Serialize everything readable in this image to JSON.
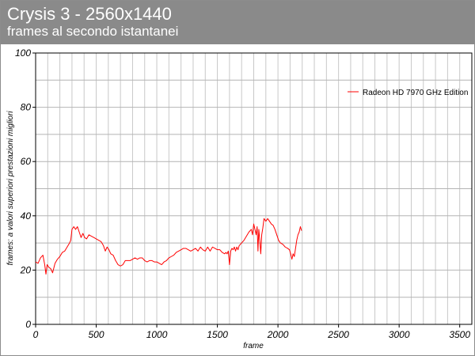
{
  "header": {
    "title": "Crysis 3 - 2560x1440",
    "subtitle": "frames al secondo istantanei"
  },
  "chart_data": {
    "type": "line",
    "xlabel": "frame",
    "ylabel": "frames: a valori superiori prestazioni migliori",
    "xlim": [
      0,
      3600
    ],
    "ylim": [
      0,
      100
    ],
    "x_ticks": [
      0,
      500,
      1000,
      1500,
      2000,
      2500,
      3000,
      3500
    ],
    "y_ticks": [
      0,
      20,
      40,
      60,
      80,
      100
    ],
    "x_tick_labels": [
      "0",
      "500",
      "1000",
      "1500",
      "2000",
      "2500",
      "3000",
      "3500"
    ],
    "y_tick_labels": [
      "0",
      "20",
      "40",
      "60",
      "80",
      "100"
    ],
    "x_grid_step": 100,
    "y_grid_step": 10,
    "grid": true,
    "legend_position": "top-right",
    "series": [
      {
        "name": "Radeon HD 7970 GHz Edition",
        "color": "#ff0000",
        "points": [
          [
            0,
            23
          ],
          [
            20,
            22.5
          ],
          [
            40,
            24.5
          ],
          [
            60,
            25.5
          ],
          [
            75,
            22
          ],
          [
            85,
            18.5
          ],
          [
            95,
            22
          ],
          [
            110,
            21
          ],
          [
            125,
            20.5
          ],
          [
            140,
            19
          ],
          [
            160,
            22.5
          ],
          [
            180,
            24
          ],
          [
            200,
            25
          ],
          [
            220,
            26.5
          ],
          [
            240,
            27
          ],
          [
            260,
            28.5
          ],
          [
            280,
            30
          ],
          [
            290,
            31
          ],
          [
            300,
            35
          ],
          [
            315,
            36
          ],
          [
            330,
            35
          ],
          [
            345,
            36
          ],
          [
            360,
            34
          ],
          [
            375,
            32
          ],
          [
            390,
            33.5
          ],
          [
            405,
            32
          ],
          [
            420,
            31.5
          ],
          [
            440,
            33
          ],
          [
            460,
            32.5
          ],
          [
            480,
            32
          ],
          [
            500,
            31.5
          ],
          [
            520,
            31
          ],
          [
            540,
            30.5
          ],
          [
            560,
            29
          ],
          [
            575,
            27
          ],
          [
            590,
            28.5
          ],
          [
            605,
            27.5
          ],
          [
            620,
            26
          ],
          [
            640,
            25.5
          ],
          [
            660,
            23.5
          ],
          [
            680,
            22
          ],
          [
            700,
            21.5
          ],
          [
            720,
            22
          ],
          [
            740,
            23.5
          ],
          [
            760,
            23.5
          ],
          [
            780,
            23.5
          ],
          [
            800,
            24
          ],
          [
            820,
            24.5
          ],
          [
            840,
            24
          ],
          [
            860,
            24.5
          ],
          [
            880,
            24.5
          ],
          [
            900,
            23.5
          ],
          [
            920,
            23
          ],
          [
            940,
            23.5
          ],
          [
            960,
            23.5
          ],
          [
            980,
            23
          ],
          [
            1000,
            23
          ],
          [
            1020,
            22.5
          ],
          [
            1040,
            22
          ],
          [
            1060,
            23
          ],
          [
            1080,
            23.5
          ],
          [
            1100,
            24.5
          ],
          [
            1120,
            25
          ],
          [
            1140,
            25.5
          ],
          [
            1160,
            26.5
          ],
          [
            1180,
            27
          ],
          [
            1200,
            27.5
          ],
          [
            1220,
            28
          ],
          [
            1240,
            28
          ],
          [
            1260,
            27.5
          ],
          [
            1280,
            27
          ],
          [
            1300,
            27.5
          ],
          [
            1320,
            28
          ],
          [
            1340,
            27
          ],
          [
            1360,
            28.5
          ],
          [
            1380,
            27.5
          ],
          [
            1400,
            27
          ],
          [
            1420,
            28.5
          ],
          [
            1440,
            27
          ],
          [
            1460,
            28.5
          ],
          [
            1480,
            28
          ],
          [
            1500,
            27.5
          ],
          [
            1520,
            27.5
          ],
          [
            1540,
            26.5
          ],
          [
            1560,
            26
          ],
          [
            1570,
            26.5
          ],
          [
            1580,
            26
          ],
          [
            1590,
            27
          ],
          [
            1600,
            22
          ],
          [
            1610,
            27
          ],
          [
            1620,
            28
          ],
          [
            1630,
            27.5
          ],
          [
            1640,
            28.5
          ],
          [
            1650,
            27
          ],
          [
            1660,
            28.5
          ],
          [
            1670,
            27.5
          ],
          [
            1680,
            29
          ],
          [
            1700,
            30
          ],
          [
            1720,
            31
          ],
          [
            1740,
            32.5
          ],
          [
            1760,
            34
          ],
          [
            1780,
            35
          ],
          [
            1790,
            33
          ],
          [
            1800,
            37
          ],
          [
            1810,
            35
          ],
          [
            1820,
            33
          ],
          [
            1828,
            36
          ],
          [
            1835,
            27
          ],
          [
            1842,
            35
          ],
          [
            1850,
            31
          ],
          [
            1858,
            26
          ],
          [
            1866,
            33
          ],
          [
            1875,
            35.5
          ],
          [
            1885,
            39
          ],
          [
            1900,
            38
          ],
          [
            1915,
            39
          ],
          [
            1930,
            38
          ],
          [
            1945,
            37
          ],
          [
            1960,
            36.5
          ],
          [
            1975,
            35
          ],
          [
            1990,
            33
          ],
          [
            2005,
            31
          ],
          [
            2020,
            30
          ],
          [
            2040,
            29.5
          ],
          [
            2060,
            28.5
          ],
          [
            2080,
            28
          ],
          [
            2095,
            27.5
          ],
          [
            2105,
            26
          ],
          [
            2115,
            24
          ],
          [
            2125,
            26
          ],
          [
            2135,
            25
          ],
          [
            2145,
            28
          ],
          [
            2155,
            31
          ],
          [
            2165,
            33
          ],
          [
            2175,
            34
          ],
          [
            2185,
            36
          ],
          [
            2195,
            34.5
          ]
        ]
      }
    ]
  }
}
